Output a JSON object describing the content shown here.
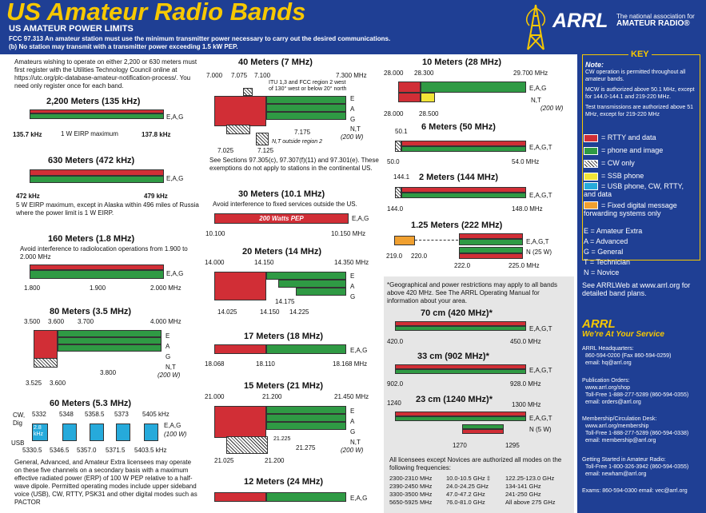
{
  "header": {
    "title": "US Amateur Radio Bands",
    "subtitle": "US AMATEUR POWER LIMITS",
    "fcc_line1": "FCC 97.313   An amateur station must use the minimum transmitter power necessary to carry out the desired communications.",
    "fcc_line2": "(b) No station may transmit with a transmitter power exceeding 1.5 kW PEP.",
    "arrl": "ARRL",
    "tagline1": "The national association for",
    "tagline2": "AMATEUR RADIO®"
  },
  "left": {
    "intro": "Amateurs wishing to operate on either 2,200 or 630 meters must first register with the Utilities Technology Council online at https://utc.org/plc-database-amateur-notification-process/. You need only register once for each band.",
    "b2200": {
      "title": "2,200 Meters (135 kHz)",
      "lo": "135.7 kHz",
      "hi": "137.8 kHz",
      "note": "1 W EIRP maximum",
      "cls": "E,A,G"
    },
    "b630": {
      "title": "630 Meters (472 kHz)",
      "lo": "472 kHz",
      "hi": "479 kHz",
      "cls": "E,A,G",
      "note": "5 W EIRP maximum, except in Alaska within 496 miles of Russia where the power limit is 1 W EIRP."
    },
    "b160": {
      "title": "160 Meters (1.8 MHz)",
      "note": "Avoid interference to radiolocation operations from 1.900 to 2.000 MHz",
      "cls": "E,A,G",
      "f1": "1.800",
      "f2": "1.900",
      "f3": "2.000  MHz"
    },
    "b80": {
      "title": "80 Meters (3.5 MHz)",
      "f1": "3.500",
      "f2": "3.600",
      "f3": "3.700",
      "f4": "4.000  MHz",
      "E": "E",
      "A": "A",
      "G": "G",
      "NT": "N,T",
      "pw": "(200 W)",
      "f5": "3.800",
      "f6": "3.525",
      "f7": "3.600"
    },
    "b60": {
      "title": "60 Meters (5.3 MHz)",
      "cw": "CW,",
      "dig": "Dig",
      "usb": "USB",
      "top": [
        "5332",
        "5348",
        "5358.5",
        "5373",
        "5405 kHz"
      ],
      "bot": [
        "5330.5",
        "5346.5",
        "5357.0",
        "5371.5",
        "5403.5  kHz"
      ],
      "box": "2.8 kHz",
      "cls": "E,A,G",
      "pw": "(100 W)",
      "note": "General, Advanced, and Amateur Extra licensees may operate on these five channels on a secondary basis with a maximum effective radiated power (ERP) of 100 W PEP relative to a half-wave dipole. Permitted operating modes include upper sideband voice (USB), CW, RTTY, PSK31 and other digital modes such as PACTOR"
    }
  },
  "mid": {
    "b40": {
      "title": "40 Meters (7 MHz)",
      "f1": "7.000",
      "f2": "7.075",
      "f3": "7.100",
      "f4": "7.300  MHz",
      "itu": "ITU 1,3 and FCC region 2 west of 130° west or below 20° north",
      "E": "E",
      "A": "A",
      "G": "G",
      "NT": "N,T",
      "pw": "(200 W)",
      "f5": "7.175",
      "ntout": "N,T outside region 2",
      "f6": "7.025",
      "f7": "7.125",
      "note": "See Sections 97.305(c), 97.307(f)(11) and 97.301(e). These exemptions do not apply to stations in the continental US."
    },
    "b30": {
      "title": "30 Meters (10.1 MHz)",
      "note": "Avoid interference to fixed services outside the US.",
      "pep": "200 Watts PEP",
      "cls": "E,A,G",
      "lo": "10.100",
      "hi": "10.150 MHz"
    },
    "b20": {
      "title": "20 Meters (14 MHz)",
      "f1": "14.000",
      "f2": "14.150",
      "f3": "14.350 MHz",
      "E": "E",
      "A": "A",
      "G": "G",
      "f4": "14.175",
      "f5": "14.025",
      "f6": "14.150",
      "f7": "14.225"
    },
    "b17": {
      "title": "17 Meters (18 MHz)",
      "cls": "E,A,G",
      "f1": "18.068",
      "f2": "18.110",
      "f3": "18.168 MHz"
    },
    "b15": {
      "title": "15 Meters (21 MHz)",
      "f1": "21.000",
      "f2": "21.200",
      "f3": "21.450 MHz",
      "E": "E",
      "A": "A",
      "G": "G",
      "NT": "N,T",
      "pw": "(200 W)",
      "f4": "21.225",
      "f5": "21.275",
      "f6": "21.025",
      "f7": "21.200"
    },
    "b12": {
      "title": "12 Meters (24 MHz)",
      "cls": "E,A,G"
    }
  },
  "right": {
    "b10": {
      "title": "10 Meters (28 MHz)",
      "f1": "28.000",
      "f2": "28.300",
      "f3": "29.700 MHz",
      "cls": "E,A,G",
      "nt": "N,T",
      "pw": "(200 W)",
      "f4": "28.000",
      "f5": "28.500"
    },
    "b6": {
      "title": "6 Meters (50 MHz)",
      "f1": "50.1",
      "cls": "E,A,G,T",
      "lo": "50.0",
      "hi": "54.0 MHz"
    },
    "b2": {
      "title": "2 Meters (144 MHz)",
      "f1": "144.1",
      "cls": "E,A,G,T",
      "lo": "144.0",
      "hi": "148.0 MHz"
    },
    "b125": {
      "title": "1.25 Meters (222 MHz)",
      "cls": "E,A,G,T",
      "n": "N (25 W)",
      "f1": "219.0",
      "f2": "220.0",
      "f3": "222.0",
      "f4": "225.0 MHz"
    }
  },
  "uhf": {
    "note": "*Geographical and power restrictions may apply to all bands above 420 MHz. See The ARRL Operating Manual for information about your area.",
    "b70": {
      "title": "70 cm (420 MHz)*",
      "cls": "E,A,G,T",
      "lo": "420.0",
      "hi": "450.0 MHz"
    },
    "b33": {
      "title": "33 cm (902 MHz)*",
      "cls": "E,A,G,T",
      "lo": "902.0",
      "hi": "928.0 MHz"
    },
    "b23": {
      "title": "23 cm (1240 MHz)*",
      "cls": "E,A,G,T",
      "n": "N (5 W)",
      "f1": "1240",
      "f2": "1300 MHz",
      "f3": "1270",
      "f4": "1295"
    },
    "lic": "All licensees except Novices are authorized all modes on the following frequencies:",
    "freqs": [
      [
        "2300-2310 MHz",
        "10.0-10.5 GHz ‡",
        "122.25-123.0 GHz"
      ],
      [
        "2390-2450 MHz",
        "24.0-24.25 GHz",
        "134-141 GHz"
      ],
      [
        "3300-3500 MHz",
        "47.0-47.2 GHz",
        "241-250 GHz"
      ],
      [
        "5650-5925 MHz",
        "76.0-81.0 GHz",
        "All above 275 GHz"
      ]
    ]
  },
  "key": {
    "title": "KEY",
    "note_label": "Note:",
    "note1": "CW operation is permitted throughout all amateur bands.",
    "note2": "MCW is authorized above 50.1 MHz, except for 144.0-144.1 and 219-220 MHz.",
    "note3": "Test transmissions are authorized above 51 MHz, except for 219-220 MHz",
    "legend": [
      "= RTTY and data",
      "= phone and image",
      "= CW only",
      "= SSB phone",
      "= USB phone, CW, RTTY, and data",
      "= Fixed digital message forwarding systems only"
    ],
    "classes": [
      "E = Amateur Extra",
      "A = Advanced",
      "G = General",
      "T = Technician",
      "N = Novice"
    ],
    "web": "See ARRLWeb at www.arrl.org for detailed band plans.",
    "arrl": "ARRL",
    "service": "We're At Your Service",
    "hq": "ARRL Headquarters:",
    "hq1": "860-594-0200  (Fax 860-594-0259)",
    "hq2": "email: hq@arrl.org",
    "pub": "Publication Orders:",
    "pub1": "www.arrl.org/shop",
    "pub2": "Toll-Free 1-888-277-5289 (860-594-0355)",
    "pub3": "email: orders@arrl.org",
    "mem": "Membership/Circulation Desk:",
    "mem1": "www.arrl.org/membership",
    "mem2": "Toll-Free 1-888-277-5289 (860-594-0338)",
    "mem3": "email: membership@arrl.org",
    "start": "Getting Started in Amateur Radio:",
    "start1": "Toll-Free 1-800-326-3942 (860-594-0355)",
    "start2": "email: newham@arrl.org",
    "exams": "Exams:  860-594-0300   email: vec@arrl.org"
  }
}
